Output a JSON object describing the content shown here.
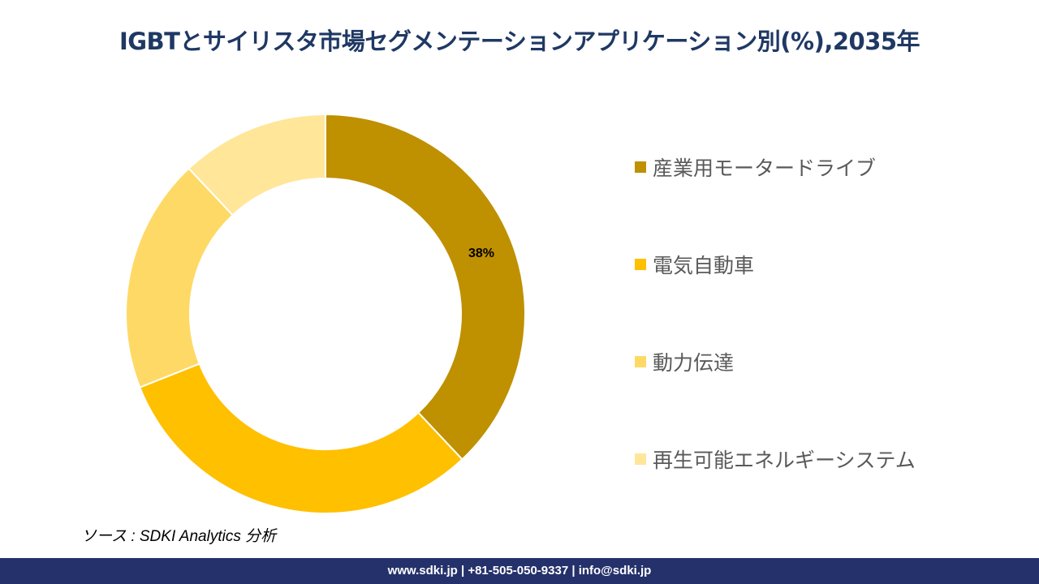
{
  "title": "IGBTとサイリスタ市場セグメンテーションアプリケーション別(%),2035年",
  "chart_data": {
    "type": "pie",
    "variant": "donut",
    "title": "IGBTとサイリスタ市場セグメンテーションアプリケーション別(%),2035年",
    "categories": [
      "産業用モータードライブ",
      "電気自動車",
      "動力伝達",
      "再生可能エネルギーシステム"
    ],
    "values": [
      38,
      31,
      19,
      12
    ],
    "colors": [
      "#BF9000",
      "#FFC000",
      "#FFD966",
      "#FFE699"
    ],
    "data_labels": [
      "38%",
      null,
      null,
      null
    ],
    "legend_position": "right"
  },
  "source": "ソース : SDKI Analytics 分析",
  "footer": "www.sdki.jp | +81-505-050-9337 | info@sdki.jp"
}
